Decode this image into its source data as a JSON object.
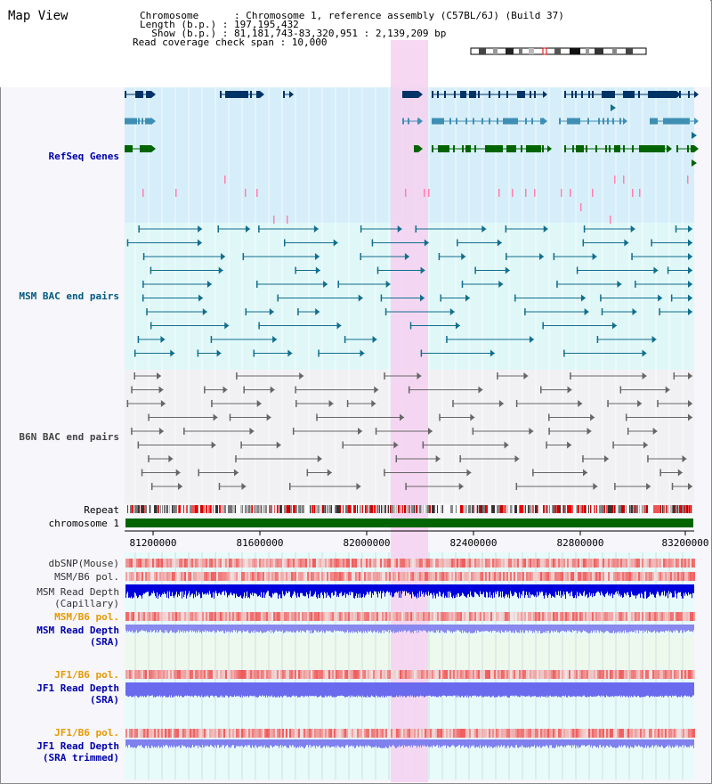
{
  "header": {
    "title": "Map View",
    "info": {
      "chromosome": "Chromosome      : Chromosome 1, reference assembly (C57BL/6J) (Build 37)",
      "length": "Length (b.p.) : 197,195,432",
      "show": "  Show (b.p.) : 81,181,743-83,320,951 : 2,139,209 bp",
      "coverage": "Read coverage check span : 10,000"
    }
  },
  "tracks": {
    "refseq": "RefSeq Genes",
    "msm_bac": "MSM BAC end pairs",
    "b6n_bac": "B6N BAC end pairs",
    "repeat": "Repeat",
    "chromosome": "chromosome 1",
    "dbsnp": "dbSNP(Mouse)",
    "msm_b6_pol_1": "MSM/B6 pol.",
    "msm_rd_cap_1": "MSM Read Depth",
    "msm_rd_cap_2": "(Capillary)",
    "msm_b6_pol_2": "MSM/B6 pol.",
    "msm_rd_sra_1": "MSM Read Depth",
    "msm_rd_sra_2": "(SRA)",
    "jf1_b6_pol_1": "JF1/B6 pol.",
    "jf1_rd_sra_1": "JF1 Read Depth",
    "jf1_rd_sra_2": "(SRA)",
    "jf1_b6_pol_2": "JF1/B6 pol.",
    "jf1_rd_trim_1": "JF1 Read Depth",
    "jf1_rd_trim_2": "(SRA trimmed)"
  },
  "axis": {
    "ticks": [
      "81200000",
      "81600000",
      "82000000",
      "82400000",
      "82800000",
      "83200000"
    ]
  },
  "colors": {
    "refseq_band": "#d6eef9",
    "msm_band": "#e0f7f8",
    "b6n_band": "#f1f1f4",
    "highlight": "#f6d1f1",
    "gene_dark": "#003366",
    "gene_mid": "#3f8fb5",
    "gene_green": "#006400",
    "msm_pair": "#116e8c",
    "b6n_pair": "#666666",
    "chromosome_bar": "#006400",
    "depth_blue": "#0000dd",
    "depth_light": "#7777ee",
    "pol_red": "#ee4444"
  }
}
